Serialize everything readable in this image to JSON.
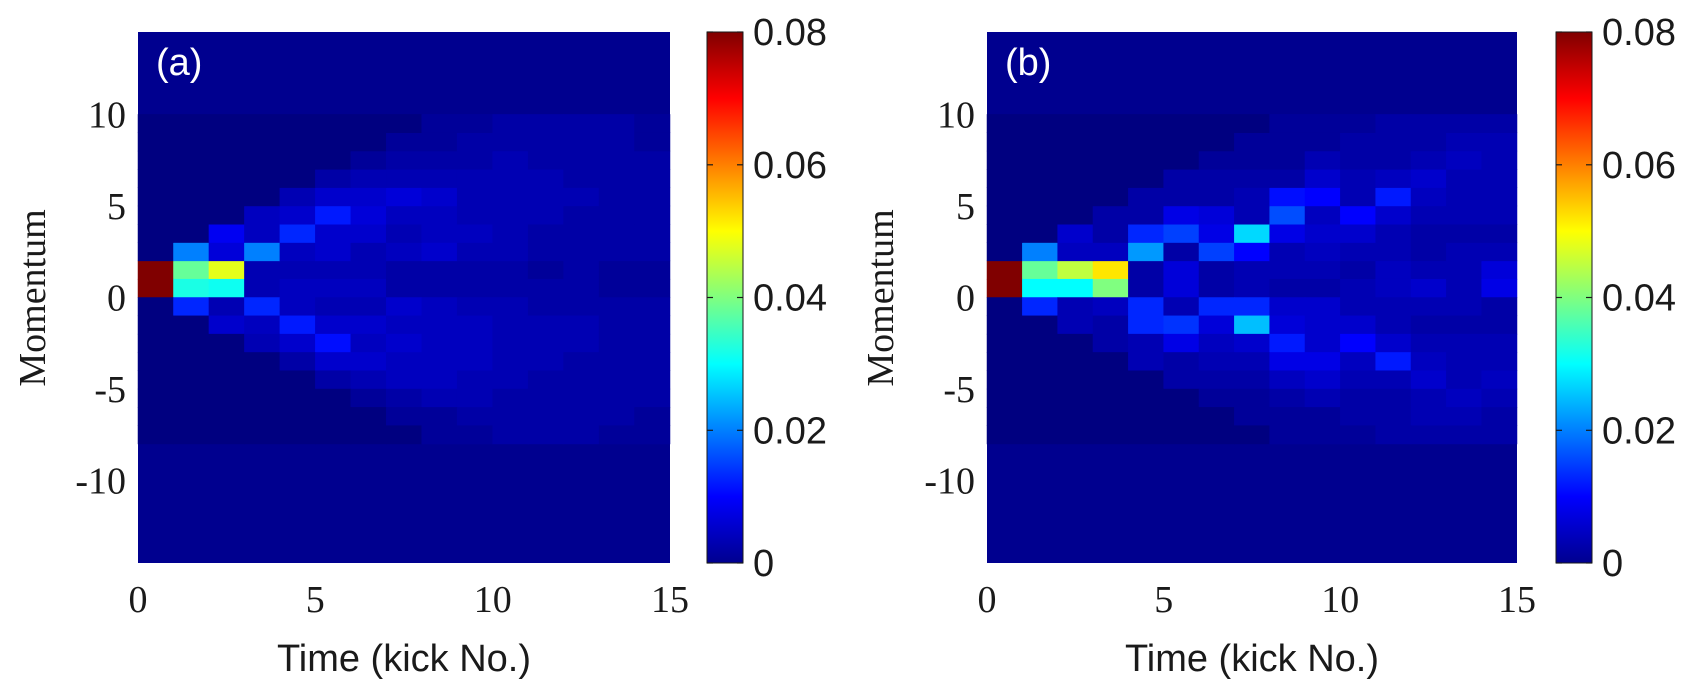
{
  "chart_data": [
    {
      "type": "heatmap",
      "panel_label": "(a)",
      "xlabel": "Time (kick No.)",
      "ylabel": "Momentum",
      "xlim": [
        0,
        15
      ],
      "ylim": [
        -14.5,
        14.5
      ],
      "xticks": [
        "0",
        "5",
        "10",
        "15"
      ],
      "yticks": [
        "-10",
        "-5",
        "0",
        "5",
        "10"
      ],
      "colorbar": {
        "min": 0,
        "max": 0.08,
        "ticks": [
          "0",
          "0.02",
          "0.04",
          "0.06",
          "0.08"
        ],
        "colormap": "jet"
      },
      "rows": [
        1.5,
        0.5,
        2.5,
        -0.5,
        3.5,
        -1.5,
        4.5,
        -2.5,
        5.5,
        -3.5,
        6.5,
        -4.5,
        7.5,
        -5.5,
        8.5,
        -6.5,
        9.5,
        -7.5
      ],
      "values": [
        [
          0.08,
          0.038,
          0.048,
          0.004,
          0.004,
          0.004,
          0.004,
          0.003,
          0.003,
          0.003,
          0.003,
          0.002,
          0.003,
          0.002,
          0.002
        ],
        [
          0.08,
          0.032,
          0.031,
          0.004,
          0.005,
          0.005,
          0.005,
          0.003,
          0.003,
          0.003,
          0.003,
          0.003,
          0.003,
          0.002,
          0.002
        ],
        [
          0.0,
          0.02,
          0.007,
          0.02,
          0.005,
          0.006,
          0.004,
          0.005,
          0.006,
          0.004,
          0.004,
          0.003,
          0.003,
          0.003,
          0.003
        ],
        [
          0.0,
          0.013,
          0.004,
          0.013,
          0.005,
          0.004,
          0.004,
          0.006,
          0.005,
          0.004,
          0.004,
          0.003,
          0.003,
          0.003,
          0.003
        ],
        [
          0.0,
          0.0,
          0.009,
          0.005,
          0.013,
          0.006,
          0.006,
          0.004,
          0.005,
          0.005,
          0.004,
          0.003,
          0.003,
          0.003,
          0.003
        ],
        [
          0.0,
          0.0,
          0.006,
          0.005,
          0.012,
          0.006,
          0.006,
          0.005,
          0.005,
          0.005,
          0.004,
          0.004,
          0.004,
          0.003,
          0.003
        ],
        [
          0.0,
          0.0,
          0.0,
          0.005,
          0.006,
          0.012,
          0.007,
          0.005,
          0.005,
          0.004,
          0.004,
          0.004,
          0.003,
          0.003,
          0.003
        ],
        [
          0.0,
          0.0,
          0.0,
          0.004,
          0.006,
          0.011,
          0.005,
          0.006,
          0.005,
          0.005,
          0.004,
          0.004,
          0.004,
          0.003,
          0.003
        ],
        [
          0.0,
          0.0,
          0.0,
          0.0,
          0.004,
          0.006,
          0.006,
          0.007,
          0.006,
          0.004,
          0.004,
          0.004,
          0.004,
          0.003,
          0.003
        ],
        [
          0.0,
          0.0,
          0.0,
          0.0,
          0.003,
          0.006,
          0.006,
          0.005,
          0.005,
          0.005,
          0.004,
          0.004,
          0.003,
          0.003,
          0.003
        ],
        [
          0.0,
          0.0,
          0.0,
          0.0,
          0.0,
          0.003,
          0.004,
          0.004,
          0.004,
          0.004,
          0.004,
          0.004,
          0.003,
          0.003,
          0.003
        ],
        [
          0.0,
          0.0,
          0.0,
          0.0,
          0.0,
          0.003,
          0.004,
          0.005,
          0.005,
          0.004,
          0.004,
          0.003,
          0.003,
          0.003,
          0.003
        ],
        [
          0.0,
          0.0,
          0.0,
          0.0,
          0.0,
          0.0,
          0.002,
          0.003,
          0.003,
          0.003,
          0.004,
          0.003,
          0.003,
          0.003,
          0.003
        ],
        [
          0.0,
          0.0,
          0.0,
          0.0,
          0.0,
          0.0,
          0.002,
          0.003,
          0.004,
          0.004,
          0.003,
          0.003,
          0.003,
          0.003,
          0.003
        ],
        [
          0.0,
          0.0,
          0.0,
          0.0,
          0.0,
          0.0,
          0.0,
          0.002,
          0.002,
          0.003,
          0.003,
          0.003,
          0.003,
          0.003,
          0.002
        ],
        [
          0.0,
          0.0,
          0.0,
          0.0,
          0.0,
          0.0,
          0.0,
          0.002,
          0.002,
          0.003,
          0.003,
          0.003,
          0.003,
          0.003,
          0.002
        ],
        [
          0.0,
          0.0,
          0.0,
          0.0,
          0.0,
          0.0,
          0.0,
          0.0,
          0.002,
          0.002,
          0.003,
          0.003,
          0.003,
          0.003,
          0.002
        ],
        [
          0.0,
          0.0,
          0.0,
          0.0,
          0.0,
          0.0,
          0.0,
          0.0,
          0.002,
          0.002,
          0.003,
          0.003,
          0.003,
          0.002,
          0.002
        ]
      ]
    },
    {
      "type": "heatmap",
      "panel_label": "(b)",
      "xlabel": "Time (kick No.)",
      "ylabel": "Momentum",
      "xlim": [
        0,
        15
      ],
      "ylim": [
        -14.5,
        14.5
      ],
      "xticks": [
        "0",
        "5",
        "10",
        "15"
      ],
      "yticks": [
        "-10",
        "-5",
        "0",
        "5",
        "10"
      ],
      "colorbar": {
        "min": 0,
        "max": 0.08,
        "ticks": [
          "0",
          "0.02",
          "0.04",
          "0.06",
          "0.08"
        ],
        "colormap": "jet"
      },
      "rows": [
        1.5,
        0.5,
        2.5,
        -0.5,
        3.5,
        -1.5,
        4.5,
        -2.5,
        5.5,
        -3.5,
        6.5,
        -4.5,
        7.5,
        -5.5,
        8.5,
        -6.5,
        9.5,
        -7.5
      ],
      "values": [
        [
          0.08,
          0.038,
          0.045,
          0.052,
          0.003,
          0.007,
          0.003,
          0.004,
          0.004,
          0.004,
          0.003,
          0.005,
          0.004,
          0.004,
          0.007
        ],
        [
          0.08,
          0.03,
          0.03,
          0.04,
          0.003,
          0.007,
          0.003,
          0.004,
          0.003,
          0.003,
          0.004,
          0.005,
          0.006,
          0.004,
          0.008
        ],
        [
          0.0,
          0.02,
          0.005,
          0.005,
          0.022,
          0.003,
          0.015,
          0.01,
          0.004,
          0.005,
          0.004,
          0.004,
          0.003,
          0.004,
          0.004
        ],
        [
          0.0,
          0.013,
          0.004,
          0.005,
          0.013,
          0.004,
          0.013,
          0.013,
          0.006,
          0.006,
          0.004,
          0.004,
          0.004,
          0.004,
          0.003
        ],
        [
          0.0,
          0.0,
          0.006,
          0.003,
          0.013,
          0.015,
          0.008,
          0.027,
          0.008,
          0.006,
          0.006,
          0.004,
          0.003,
          0.003,
          0.003
        ],
        [
          0.0,
          0.0,
          0.004,
          0.003,
          0.013,
          0.014,
          0.007,
          0.025,
          0.007,
          0.006,
          0.006,
          0.004,
          0.003,
          0.003,
          0.003
        ],
        [
          0.0,
          0.0,
          0.0,
          0.003,
          0.003,
          0.008,
          0.007,
          0.004,
          0.016,
          0.005,
          0.01,
          0.006,
          0.004,
          0.004,
          0.004
        ],
        [
          0.0,
          0.0,
          0.0,
          0.003,
          0.004,
          0.008,
          0.005,
          0.006,
          0.012,
          0.006,
          0.01,
          0.006,
          0.004,
          0.004,
          0.004
        ],
        [
          0.0,
          0.0,
          0.0,
          0.0,
          0.003,
          0.003,
          0.003,
          0.004,
          0.011,
          0.01,
          0.004,
          0.012,
          0.005,
          0.004,
          0.004
        ],
        [
          0.0,
          0.0,
          0.0,
          0.0,
          0.004,
          0.003,
          0.004,
          0.004,
          0.008,
          0.008,
          0.005,
          0.012,
          0.005,
          0.004,
          0.004
        ],
        [
          0.0,
          0.0,
          0.0,
          0.0,
          0.0,
          0.003,
          0.003,
          0.003,
          0.003,
          0.006,
          0.004,
          0.005,
          0.006,
          0.004,
          0.004
        ],
        [
          0.0,
          0.0,
          0.0,
          0.0,
          0.0,
          0.003,
          0.003,
          0.003,
          0.005,
          0.006,
          0.004,
          0.004,
          0.006,
          0.004,
          0.005
        ],
        [
          0.0,
          0.0,
          0.0,
          0.0,
          0.0,
          0.0,
          0.002,
          0.002,
          0.002,
          0.004,
          0.003,
          0.003,
          0.004,
          0.005,
          0.004
        ],
        [
          0.0,
          0.0,
          0.0,
          0.0,
          0.0,
          0.0,
          0.002,
          0.002,
          0.003,
          0.004,
          0.003,
          0.003,
          0.004,
          0.005,
          0.004
        ],
        [
          0.0,
          0.0,
          0.0,
          0.0,
          0.0,
          0.0,
          0.0,
          0.002,
          0.002,
          0.002,
          0.003,
          0.003,
          0.003,
          0.004,
          0.004
        ],
        [
          0.0,
          0.0,
          0.0,
          0.0,
          0.0,
          0.0,
          0.0,
          0.002,
          0.002,
          0.002,
          0.003,
          0.003,
          0.004,
          0.004,
          0.003
        ],
        [
          0.0,
          0.0,
          0.0,
          0.0,
          0.0,
          0.0,
          0.0,
          0.0,
          0.002,
          0.002,
          0.002,
          0.003,
          0.003,
          0.003,
          0.003
        ],
        [
          0.0,
          0.0,
          0.0,
          0.0,
          0.0,
          0.0,
          0.0,
          0.0,
          0.002,
          0.002,
          0.002,
          0.003,
          0.003,
          0.003,
          0.003
        ]
      ]
    }
  ]
}
